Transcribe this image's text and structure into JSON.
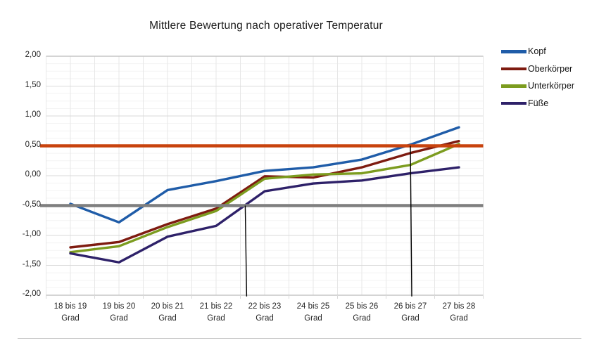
{
  "title": "Mittlere Bewertung nach operativer Temperatur",
  "chart_data": {
    "type": "line",
    "title": "Mittlere Bewertung nach operativer Temperatur",
    "categories": [
      "18 bis 19",
      "19 bis 20",
      "20 bis 21",
      "21 bis 22",
      "22 bis 23",
      "24 bis 25",
      "25 bis 26",
      "26 bis 27",
      "27 bis 28"
    ],
    "category_suffix": "Grad",
    "y_ticks": [
      "2,00",
      "1,50",
      "1,00",
      "0,50",
      "0,00",
      "-0,50",
      "-1,00",
      "-1,50",
      "-2,00"
    ],
    "ylim": [
      -2.0,
      2.0
    ],
    "grid": true,
    "legend_position": "right",
    "series": [
      {
        "name": "Kopf",
        "color": "#1f5ca8",
        "values": [
          -0.47,
          -0.78,
          -0.24,
          -0.09,
          0.08,
          0.14,
          0.27,
          0.52,
          0.81
        ]
      },
      {
        "name": "Oberkörper",
        "color": "#7e1b10",
        "values": [
          -1.2,
          -1.11,
          -0.81,
          -0.55,
          -0.01,
          -0.03,
          0.14,
          0.38,
          0.58
        ]
      },
      {
        "name": "Unterkörper",
        "color": "#7c9c1f",
        "values": [
          -1.28,
          -1.18,
          -0.86,
          -0.59,
          -0.05,
          0.02,
          0.04,
          0.18,
          0.53
        ]
      },
      {
        "name": "Füße",
        "color": "#2e2169",
        "values": [
          -1.3,
          -1.45,
          -1.02,
          -0.84,
          -0.26,
          -0.13,
          -0.08,
          0.04,
          0.14
        ]
      }
    ],
    "reference_lines": [
      {
        "name": "upper-threshold",
        "y": 0.5,
        "color": "#c8430e"
      },
      {
        "name": "lower-threshold",
        "y": -0.5,
        "color": "#7f7f7f"
      }
    ],
    "annotations": [
      {
        "name": "vertical-marker-1",
        "x_index": 3.6,
        "y_from": -0.5,
        "y_to": -2.02,
        "color": "#000000"
      },
      {
        "name": "vertical-marker-2",
        "x_index": 7.0,
        "y_from": 0.5,
        "y_to": -2.02,
        "color": "#000000"
      }
    ]
  }
}
